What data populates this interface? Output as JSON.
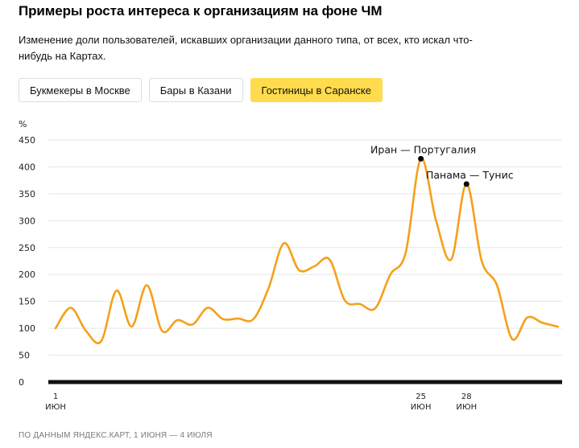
{
  "header": {
    "title": "Примеры роста интереса к организациям на фоне ЧМ",
    "subtitle": "Изменение доли пользователей, искавших организации данного типа, от всех, кто искал что-нибудь на Картах."
  },
  "tabs": [
    {
      "label": "Букмекеры в Москве",
      "active": false
    },
    {
      "label": "Бары в Казани",
      "active": false
    },
    {
      "label": "Гостиницы в Саранске",
      "active": true
    }
  ],
  "colors": {
    "line": "#f5a01a",
    "active_tab": "#ffdb4d",
    "axis": "#111111",
    "grid": "#e6e6e6"
  },
  "footer": {
    "source": "ПО ДАННЫМ ЯНДЕКС.КАРТ, 1 ИЮНЯ — 4 ИЮЛЯ"
  },
  "chart_data": {
    "type": "line",
    "title": "Гостиницы в Саранске",
    "xlabel": "",
    "ylabel": "%",
    "ylim": [
      0,
      450
    ],
    "yticks": [
      0,
      50,
      100,
      150,
      200,
      250,
      300,
      350,
      400,
      450
    ],
    "grid": true,
    "legend": "none",
    "x_tick_labels": [
      {
        "day": 1,
        "label": "1",
        "month": "ИЮН"
      },
      {
        "day": 25,
        "label": "25",
        "month": "ИЮН"
      },
      {
        "day": 28,
        "label": "28",
        "month": "ИЮН"
      }
    ],
    "x": [
      1,
      2,
      3,
      4,
      5,
      6,
      7,
      8,
      9,
      10,
      11,
      12,
      13,
      14,
      15,
      16,
      17,
      18,
      19,
      20,
      21,
      22,
      23,
      24,
      25,
      26,
      27,
      28,
      29,
      30,
      31,
      32,
      33,
      34
    ],
    "series": [
      {
        "name": "Гостиницы в Саранске",
        "values": [
          100,
          138,
          95,
          76,
          170,
          103,
          180,
          95,
          115,
          107,
          138,
          117,
          118,
          117,
          175,
          258,
          208,
          215,
          228,
          152,
          145,
          137,
          200,
          240,
          415,
          300,
          228,
          368,
          225,
          180,
          80,
          120,
          110,
          103
        ]
      }
    ],
    "annotations": [
      {
        "day": 25,
        "value": 415,
        "label": "Иран — Португалия"
      },
      {
        "day": 28,
        "value": 368,
        "label": "Панама — Тунис"
      }
    ]
  }
}
